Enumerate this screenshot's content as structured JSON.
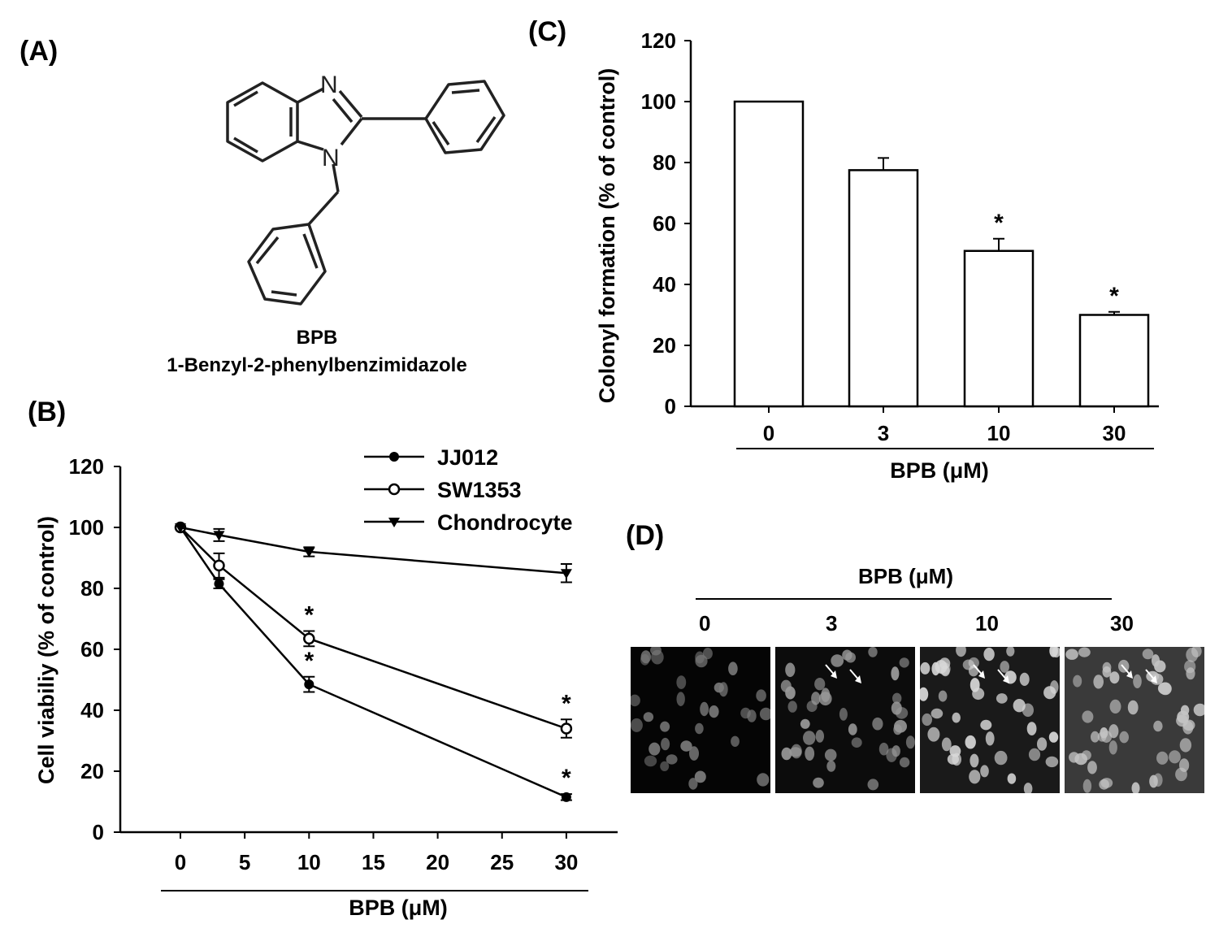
{
  "panels": {
    "a": "(A)",
    "b": "(B)",
    "c": "(C)",
    "d": "(D)"
  },
  "structure": {
    "atom_n1": "N",
    "atom_n2": "N",
    "abbrev": "BPB",
    "name": "1-Benzyl-2-phenylbenzimidazole"
  },
  "chart_data": [
    {
      "id": "B",
      "type": "line",
      "xlabel": "BPB (μM)",
      "ylabel": "Cell viabiliy (% of control)",
      "xlim": [
        -5,
        35
      ],
      "ylim": [
        0,
        120
      ],
      "xticks": [
        0,
        5,
        10,
        15,
        20,
        25,
        30
      ],
      "yticks": [
        0,
        20,
        40,
        60,
        80,
        100,
        120
      ],
      "x": [
        0,
        3,
        10,
        30
      ],
      "series": [
        {
          "name": "JJ012",
          "marker": "filled-circle",
          "values": [
            100,
            81.5,
            48.5,
            11.5
          ],
          "errors": [
            0,
            1.5,
            2.5,
            1
          ],
          "significant": [
            false,
            false,
            true,
            true
          ]
        },
        {
          "name": "SW1353",
          "marker": "open-circle",
          "values": [
            100,
            87.5,
            63.5,
            34
          ],
          "errors": [
            0,
            4,
            2.5,
            3
          ],
          "significant": [
            false,
            false,
            true,
            true
          ]
        },
        {
          "name": "Chondrocyte",
          "marker": "filled-triangle-down",
          "values": [
            100,
            97.5,
            92,
            85
          ],
          "errors": [
            0,
            2,
            1.5,
            3
          ],
          "significant": [
            false,
            false,
            false,
            false
          ]
        }
      ],
      "significance_marker": "*",
      "legend": "top-right"
    },
    {
      "id": "C",
      "type": "bar",
      "xlabel": "BPB (μM)",
      "ylabel": "Colonyl  formation (% of control)",
      "ylim": [
        0,
        120
      ],
      "yticks": [
        0,
        20,
        40,
        60,
        80,
        100,
        120
      ],
      "categories": [
        "0",
        "3",
        "10",
        "30"
      ],
      "values": [
        100,
        77.5,
        51,
        30
      ],
      "errors": [
        0,
        4,
        4,
        1
      ],
      "significant": [
        false,
        false,
        true,
        true
      ],
      "significance_marker": "*"
    }
  ],
  "micrographs": {
    "header": "BPB (μM)",
    "labels": [
      "0",
      "3",
      "10",
      "30"
    ]
  }
}
